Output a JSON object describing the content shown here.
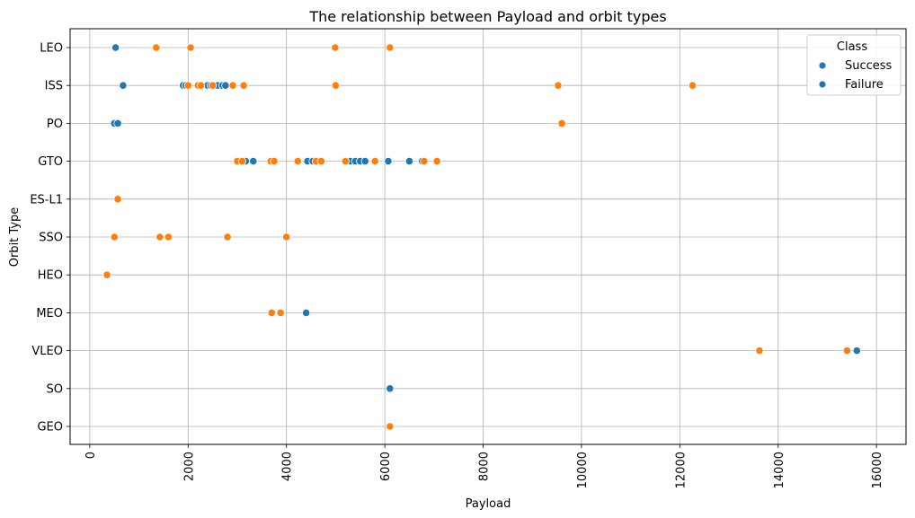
{
  "chart_data": {
    "type": "scatter",
    "title": "The relationship between Payload and orbit types",
    "xlabel": "Payload",
    "ylabel": "Orbit Type",
    "xlim": [
      -400,
      16600
    ],
    "xticks": [
      0,
      2000,
      4000,
      6000,
      8000,
      10000,
      12000,
      14000,
      16000
    ],
    "categories": [
      "LEO",
      "ISS",
      "PO",
      "GTO",
      "ES-L1",
      "SSO",
      "HEO",
      "MEO",
      "VLEO",
      "SO",
      "GEO"
    ],
    "grid": true,
    "legend": {
      "title": "Class",
      "placement": "top-right",
      "entries": [
        {
          "label": "Success",
          "color": "#1f77b4"
        },
        {
          "label": "Failure",
          "color": "#1f77b4"
        }
      ]
    },
    "colors": {
      "class_0": "#1f77b4",
      "class_1": "#ff7f0e"
    },
    "series": [
      {
        "color": "#1f77b4",
        "points": [
          {
            "x": 525,
            "y": "LEO"
          },
          {
            "x": 677,
            "y": "ISS"
          },
          {
            "x": 1898,
            "y": "ISS"
          },
          {
            "x": 1952,
            "y": "ISS"
          },
          {
            "x": 2395,
            "y": "ISS"
          },
          {
            "x": 2460,
            "y": "ISS"
          },
          {
            "x": 2600,
            "y": "ISS"
          },
          {
            "x": 2700,
            "y": "ISS"
          },
          {
            "x": 2760,
            "y": "ISS"
          },
          {
            "x": 500,
            "y": "PO"
          },
          {
            "x": 570,
            "y": "PO"
          },
          {
            "x": 3170,
            "y": "GTO"
          },
          {
            "x": 3325,
            "y": "GTO"
          },
          {
            "x": 4428,
            "y": "GTO"
          },
          {
            "x": 4535,
            "y": "GTO"
          },
          {
            "x": 5300,
            "y": "GTO"
          },
          {
            "x": 5400,
            "y": "GTO"
          },
          {
            "x": 5500,
            "y": "GTO"
          },
          {
            "x": 5600,
            "y": "GTO"
          },
          {
            "x": 6070,
            "y": "GTO"
          },
          {
            "x": 6500,
            "y": "GTO"
          },
          {
            "x": 6761,
            "y": "GTO"
          },
          {
            "x": 4400,
            "y": "MEO"
          },
          {
            "x": 15600,
            "y": "VLEO"
          },
          {
            "x": 6104,
            "y": "SO"
          }
        ]
      },
      {
        "color": "#ff7f0e",
        "points": [
          {
            "x": 1350,
            "y": "LEO"
          },
          {
            "x": 2050,
            "y": "LEO"
          },
          {
            "x": 4990,
            "y": "LEO"
          },
          {
            "x": 6104,
            "y": "LEO"
          },
          {
            "x": 2000,
            "y": "ISS"
          },
          {
            "x": 2200,
            "y": "ISS"
          },
          {
            "x": 2260,
            "y": "ISS"
          },
          {
            "x": 2500,
            "y": "ISS"
          },
          {
            "x": 2910,
            "y": "ISS"
          },
          {
            "x": 3130,
            "y": "ISS"
          },
          {
            "x": 5000,
            "y": "ISS"
          },
          {
            "x": 9525,
            "y": "ISS"
          },
          {
            "x": 12259,
            "y": "ISS"
          },
          {
            "x": 9600,
            "y": "PO"
          },
          {
            "x": 3000,
            "y": "GTO"
          },
          {
            "x": 3100,
            "y": "GTO"
          },
          {
            "x": 3680,
            "y": "GTO"
          },
          {
            "x": 3750,
            "y": "GTO"
          },
          {
            "x": 4230,
            "y": "GTO"
          },
          {
            "x": 4600,
            "y": "GTO"
          },
          {
            "x": 4707,
            "y": "GTO"
          },
          {
            "x": 5200,
            "y": "GTO"
          },
          {
            "x": 5800,
            "y": "GTO"
          },
          {
            "x": 6800,
            "y": "GTO"
          },
          {
            "x": 7060,
            "y": "GTO"
          },
          {
            "x": 570,
            "y": "ES-L1"
          },
          {
            "x": 500,
            "y": "SSO"
          },
          {
            "x": 1425,
            "y": "SSO"
          },
          {
            "x": 1600,
            "y": "SSO"
          },
          {
            "x": 2800,
            "y": "SSO"
          },
          {
            "x": 4000,
            "y": "SSO"
          },
          {
            "x": 350,
            "y": "HEO"
          },
          {
            "x": 3700,
            "y": "MEO"
          },
          {
            "x": 3880,
            "y": "MEO"
          },
          {
            "x": 13620,
            "y": "VLEO"
          },
          {
            "x": 15400,
            "y": "VLEO"
          },
          {
            "x": 6104,
            "y": "GEO"
          }
        ]
      }
    ]
  }
}
